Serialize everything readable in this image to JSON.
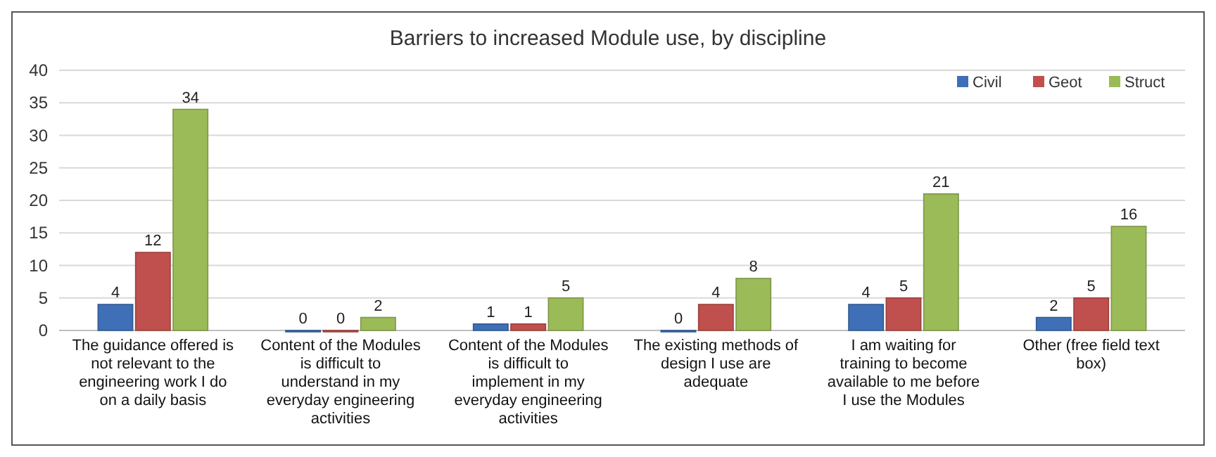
{
  "chart_data": {
    "type": "bar",
    "title": "Barriers to increased Module use, by discipline",
    "categories": [
      "The guidance offered is not relevant to the engineering work I do on a daily basis",
      "Content of the Modules is difficult to understand in my everyday engineering activities",
      "Content of the Modules is difficult to implement in my everyday engineering activities",
      "The existing methods of design I use are adequate",
      "I am waiting for training to become available to me before I use the Modules",
      "Other (free field text box)"
    ],
    "series": [
      {
        "name": "Civil",
        "color": "#3f6fb6",
        "values": [
          4,
          0,
          1,
          0,
          4,
          2
        ]
      },
      {
        "name": "Geot",
        "color": "#c0504d",
        "values": [
          12,
          0,
          1,
          4,
          5,
          5
        ]
      },
      {
        "name": "Struct",
        "color": "#9bbb59",
        "values": [
          34,
          2,
          5,
          8,
          21,
          16
        ]
      }
    ],
    "ylim": [
      0,
      40
    ],
    "yticks": [
      0,
      5,
      10,
      15,
      20,
      25,
      30,
      35,
      40
    ],
    "grid": "y",
    "legend": "top right",
    "data_labels": true
  }
}
